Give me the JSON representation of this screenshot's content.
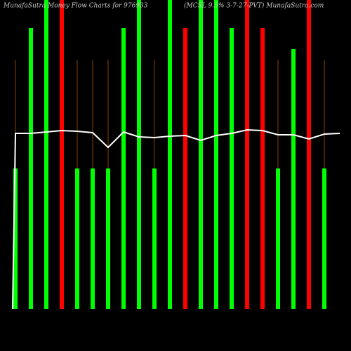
{
  "chart_data": {
    "type": "bar",
    "title": "MunafaSutra Money Flow Charts for 976933",
    "subtitle": "(MCSL 9.5% 3-7-27-PVT) MunafaSutra.com",
    "values": [
      200,
      400,
      440,
      440,
      200,
      200,
      200,
      400,
      440,
      200,
      440,
      400,
      440,
      440,
      400,
      440,
      400,
      200,
      370,
      440,
      200
    ],
    "colors": [
      "#00ff00",
      "#00ff00",
      "#00ff00",
      "#ff0000",
      "#00ff00",
      "#00ff00",
      "#00ff00",
      "#00ff00",
      "#00ff00",
      "#00ff00",
      "#00ff00",
      "#ff0000",
      "#00ff00",
      "#00ff00",
      "#00ff00",
      "#ff0000",
      "#ff0000",
      "#00ff00",
      "#00ff00",
      "#ff0000",
      "#00ff00"
    ],
    "ylim": [
      0,
      440
    ],
    "line": {
      "color": "#ffffff",
      "values": [
        0,
        250,
        250,
        252,
        254,
        253,
        251,
        230,
        252,
        245,
        244,
        246,
        247,
        240,
        247,
        250,
        255,
        254,
        248,
        248,
        242,
        249,
        250
      ]
    }
  }
}
